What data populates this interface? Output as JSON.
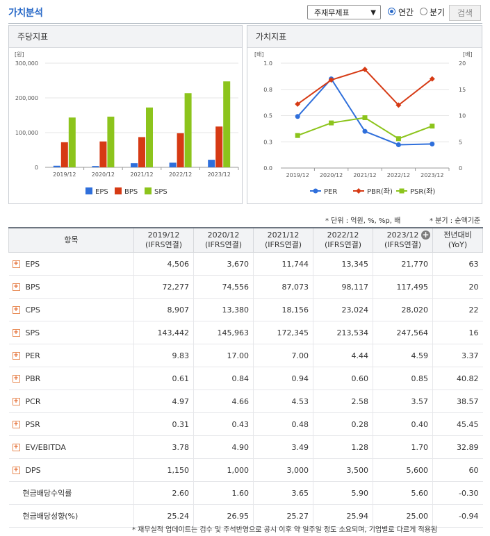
{
  "page": {
    "title": "가치분석"
  },
  "controls": {
    "select_value": "주재무제표",
    "radio_annual": "연간",
    "radio_quarter": "분기",
    "search_button": "검색"
  },
  "left_panel": {
    "title": "주당지표"
  },
  "right_panel": {
    "title": "가치지표"
  },
  "colors": {
    "eps": "#2f6fdb",
    "bps": "#d63a14",
    "sps": "#8cc41c",
    "per": "#2f6fdb",
    "pbr": "#d63a14",
    "psr": "#8cc41c",
    "accent": "#2a6ac8"
  },
  "chart_data": [
    {
      "type": "bar",
      "categories": [
        "2019/12",
        "2020/12",
        "2021/12",
        "2022/12",
        "2023/12"
      ],
      "series": [
        {
          "name": "EPS",
          "values": [
            4506,
            3670,
            11744,
            13345,
            21770
          ]
        },
        {
          "name": "BPS",
          "values": [
            72277,
            74556,
            87073,
            98117,
            117495
          ]
        },
        {
          "name": "SPS",
          "values": [
            143442,
            145963,
            172345,
            213534,
            247564
          ]
        }
      ],
      "ylabel": "[원]",
      "ylim": [
        0,
        300000
      ],
      "yticks": [
        "0",
        "100,000",
        "200,000",
        "300,000"
      ],
      "legend": "bottom"
    },
    {
      "type": "line",
      "categories": [
        "2019/12",
        "2020/12",
        "2021/12",
        "2022/12",
        "2023/12"
      ],
      "series": [
        {
          "name": "PER",
          "axis": "right",
          "values": [
            9.83,
            17.0,
            7.0,
            4.44,
            4.59
          ]
        },
        {
          "name": "PBR(좌)",
          "axis": "left",
          "values": [
            0.61,
            0.84,
            0.94,
            0.6,
            0.85
          ]
        },
        {
          "name": "PSR(좌)",
          "axis": "left",
          "values": [
            0.31,
            0.43,
            0.48,
            0.28,
            0.4
          ]
        }
      ],
      "ylabel_left": "[배]",
      "ylabel_right": "[배]",
      "ylim_left": [
        0,
        1.0
      ],
      "ylim_right": [
        0,
        20
      ],
      "yticks_left": [
        "0.0",
        "0.3",
        "0.5",
        "0.8",
        "1.0"
      ],
      "yticks_right": [
        "0",
        "5",
        "10",
        "15",
        "20"
      ],
      "legend": "bottom"
    }
  ],
  "notes": {
    "unit": "* 단위 : 억원, %, %p, 배",
    "quarter": "* 분기 : 순액기준",
    "footer": "* 재무실적 업데이트는 검수 및 주석반영으로 공시 이후 약 일주일 정도 소요되며, 기업별로 다르게 적용됨"
  },
  "table": {
    "header_item": "항목",
    "columns": [
      {
        "year": "2019/12",
        "basis": "(IFRS연결)"
      },
      {
        "year": "2020/12",
        "basis": "(IFRS연결)"
      },
      {
        "year": "2021/12",
        "basis": "(IFRS연결)"
      },
      {
        "year": "2022/12",
        "basis": "(IFRS연결)"
      },
      {
        "year": "2023/12",
        "basis": "(IFRS연결)"
      }
    ],
    "yoy_header": {
      "line1": "전년대비",
      "line2": "(YoY)"
    },
    "rows": [
      {
        "name": "EPS",
        "expand": true,
        "values": [
          "4,506",
          "3,670",
          "11,744",
          "13,345",
          "21,770"
        ],
        "yoy": "63"
      },
      {
        "name": "BPS",
        "expand": true,
        "values": [
          "72,277",
          "74,556",
          "87,073",
          "98,117",
          "117,495"
        ],
        "yoy": "20"
      },
      {
        "name": "CPS",
        "expand": true,
        "values": [
          "8,907",
          "13,380",
          "18,156",
          "23,024",
          "28,020"
        ],
        "yoy": "22"
      },
      {
        "name": "SPS",
        "expand": true,
        "values": [
          "143,442",
          "145,963",
          "172,345",
          "213,534",
          "247,564"
        ],
        "yoy": "16"
      },
      {
        "name": "PER",
        "expand": true,
        "values": [
          "9.83",
          "17.00",
          "7.00",
          "4.44",
          "4.59"
        ],
        "yoy": "3.37"
      },
      {
        "name": "PBR",
        "expand": true,
        "values": [
          "0.61",
          "0.84",
          "0.94",
          "0.60",
          "0.85"
        ],
        "yoy": "40.82"
      },
      {
        "name": "PCR",
        "expand": true,
        "values": [
          "4.97",
          "4.66",
          "4.53",
          "2.58",
          "3.57"
        ],
        "yoy": "38.57"
      },
      {
        "name": "PSR",
        "expand": true,
        "values": [
          "0.31",
          "0.43",
          "0.48",
          "0.28",
          "0.40"
        ],
        "yoy": "45.45"
      },
      {
        "name": "EV/EBITDA",
        "expand": true,
        "values": [
          "3.78",
          "4.90",
          "3.49",
          "1.28",
          "1.70"
        ],
        "yoy": "32.89"
      },
      {
        "name": "DPS",
        "expand": true,
        "values": [
          "1,150",
          "1,000",
          "3,000",
          "3,500",
          "5,600"
        ],
        "yoy": "60"
      },
      {
        "name": "현금배당수익률",
        "expand": false,
        "values": [
          "2.60",
          "1.60",
          "3.65",
          "5.90",
          "5.60"
        ],
        "yoy": "-0.30"
      },
      {
        "name": "현금배당성향(%)",
        "expand": false,
        "values": [
          "25.24",
          "26.95",
          "25.27",
          "25.94",
          "25.00"
        ],
        "yoy": "-0.94"
      }
    ]
  }
}
